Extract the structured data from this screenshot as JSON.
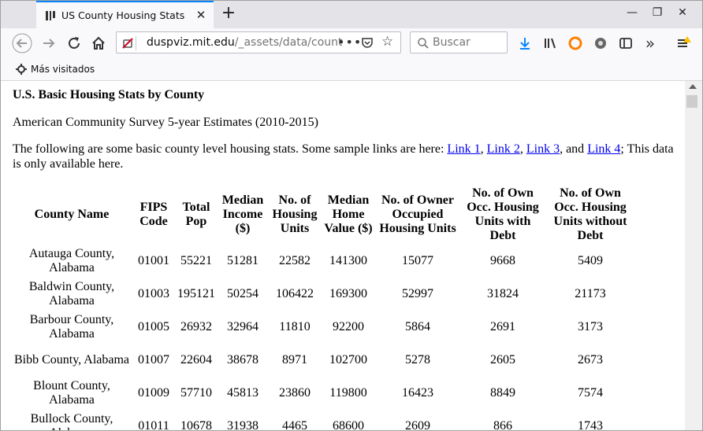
{
  "browser": {
    "tab_title": "US County Housing Stats",
    "url_domain": "duspviz.mit.edu",
    "url_path": "/_assets/data/count",
    "search_placeholder": "Buscar",
    "bookmark_label": "Más visitados"
  },
  "page": {
    "title": "U.S. Basic Housing Stats by County",
    "subtitle": "American Community Survey 5-year Estimates (2010-2015)",
    "intro_before": "The following are some basic county level housing stats. Some sample links are here: ",
    "link1": "Link 1",
    "link2": "Link 2",
    "link3": "Link 3",
    "link4": "Link 4",
    "sep_comma": ", ",
    "sep_and": ", and ",
    "intro_after": "; This data is only available here."
  },
  "table": {
    "headers": [
      "County Name",
      "FIPS Code",
      "Total Pop",
      "Median Income ($)",
      "No. of Housing Units",
      "Median Home Value ($)",
      "No. of Owner Occupied Housing Units",
      "No. of Own Occ. Housing Units with Debt",
      "No. of Own Occ. Housing Units without Debt"
    ],
    "rows": [
      [
        "Autauga County, Alabama",
        "01001",
        "55221",
        "51281",
        "22582",
        "141300",
        "15077",
        "9668",
        "5409"
      ],
      [
        "Baldwin County, Alabama",
        "01003",
        "195121",
        "50254",
        "106422",
        "169300",
        "52997",
        "31824",
        "21173"
      ],
      [
        "Barbour County, Alabama",
        "01005",
        "26932",
        "32964",
        "11810",
        "92200",
        "5864",
        "2691",
        "3173"
      ],
      [
        "Bibb County, Alabama",
        "01007",
        "22604",
        "38678",
        "8971",
        "102700",
        "5278",
        "2605",
        "2673"
      ],
      [
        "Blount County, Alabama",
        "01009",
        "57710",
        "45813",
        "23860",
        "119800",
        "16423",
        "8849",
        "7574"
      ],
      [
        "Bullock County, Alabama",
        "01011",
        "10678",
        "31938",
        "4465",
        "68600",
        "2609",
        "866",
        "1743"
      ]
    ]
  }
}
